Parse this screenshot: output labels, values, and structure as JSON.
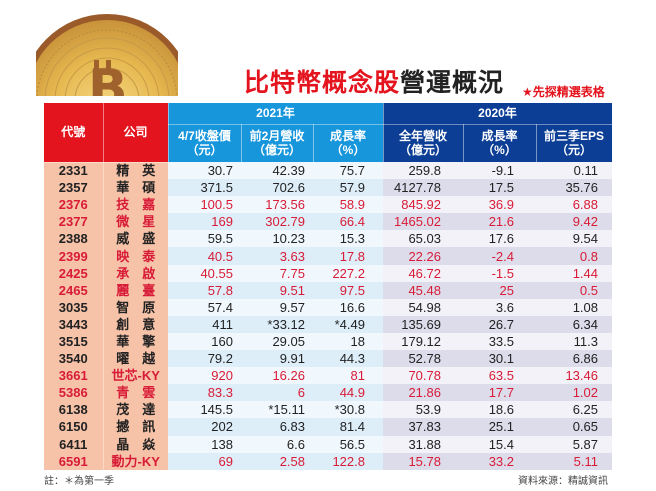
{
  "header": {
    "title_highlight": "比特幣概念股",
    "title_rest": "營運概況",
    "tagline": "★先探精選表格"
  },
  "colors": {
    "red": "#e4141e",
    "cyan": "#1896dc",
    "navy": "#0c3e96",
    "salmon": "#f6c3a9",
    "highlight_text": "#d81b36"
  },
  "table": {
    "col_code": "代號",
    "col_company": "公司",
    "group_2021": "2021年",
    "group_2020": "2020年",
    "columns_2021": [
      {
        "line1": "4/7收盤價",
        "line2": "（元）"
      },
      {
        "line1": "前2月營收",
        "line2": "（億元）"
      },
      {
        "line1": "成長率",
        "line2": "（%）"
      }
    ],
    "columns_2020": [
      {
        "line1": "全年營收",
        "line2": "（億元）"
      },
      {
        "line1": "成長率",
        "line2": "（%）"
      },
      {
        "line1": "前三季EPS",
        "line2": "（元）"
      }
    ],
    "rows": [
      {
        "code": "2331",
        "name": "精　英",
        "highlight": false,
        "v": [
          "30.7",
          "42.39",
          "75.7",
          "259.8",
          "-9.1",
          "0.11"
        ]
      },
      {
        "code": "2357",
        "name": "華　碩",
        "highlight": false,
        "v": [
          "371.5",
          "702.6",
          "57.9",
          "4127.78",
          "17.5",
          "35.76"
        ]
      },
      {
        "code": "2376",
        "name": "技　嘉",
        "highlight": true,
        "v": [
          "100.5",
          "173.56",
          "58.9",
          "845.92",
          "36.9",
          "6.88"
        ]
      },
      {
        "code": "2377",
        "name": "微　星",
        "highlight": true,
        "v": [
          "169",
          "302.79",
          "66.4",
          "1465.02",
          "21.6",
          "9.42"
        ]
      },
      {
        "code": "2388",
        "name": "威　盛",
        "highlight": false,
        "v": [
          "59.5",
          "10.23",
          "15.3",
          "65.03",
          "17.6",
          "9.54"
        ]
      },
      {
        "code": "2399",
        "name": "映　泰",
        "highlight": true,
        "v": [
          "40.5",
          "3.63",
          "17.8",
          "22.26",
          "-2.4",
          "0.8"
        ]
      },
      {
        "code": "2425",
        "name": "承　啟",
        "highlight": true,
        "v": [
          "40.55",
          "7.75",
          "227.2",
          "46.72",
          "-1.5",
          "1.44"
        ]
      },
      {
        "code": "2465",
        "name": "麗　臺",
        "highlight": true,
        "v": [
          "57.8",
          "9.51",
          "97.5",
          "45.48",
          "25",
          "0.5"
        ]
      },
      {
        "code": "3035",
        "name": "智　原",
        "highlight": false,
        "v": [
          "57.4",
          "9.57",
          "16.6",
          "54.98",
          "3.6",
          "1.08"
        ]
      },
      {
        "code": "3443",
        "name": "創　意",
        "highlight": false,
        "v": [
          "411",
          "*33.12",
          "*4.49",
          "135.69",
          "26.7",
          "6.34"
        ]
      },
      {
        "code": "3515",
        "name": "華　擎",
        "highlight": false,
        "v": [
          "160",
          "29.05",
          "18",
          "179.12",
          "33.5",
          "11.3"
        ]
      },
      {
        "code": "3540",
        "name": "曜　越",
        "highlight": false,
        "v": [
          "79.2",
          "9.91",
          "44.3",
          "52.78",
          "30.1",
          "6.86"
        ]
      },
      {
        "code": "3661",
        "name": "世芯-KY",
        "highlight": true,
        "v": [
          "920",
          "16.26",
          "81",
          "70.78",
          "63.5",
          "13.46"
        ]
      },
      {
        "code": "5386",
        "name": "青　雲",
        "highlight": true,
        "v": [
          "83.3",
          "6",
          "44.9",
          "21.86",
          "17.7",
          "1.02"
        ]
      },
      {
        "code": "6138",
        "name": "茂　達",
        "highlight": false,
        "v": [
          "145.5",
          "*15.11",
          "*30.8",
          "53.9",
          "18.6",
          "6.25"
        ]
      },
      {
        "code": "6150",
        "name": "撼　訊",
        "highlight": false,
        "v": [
          "202",
          "6.83",
          "81.4",
          "37.83",
          "25.1",
          "0.65"
        ]
      },
      {
        "code": "6411",
        "name": "晶　焱",
        "highlight": false,
        "v": [
          "138",
          "6.6",
          "56.5",
          "31.88",
          "15.4",
          "5.87"
        ]
      },
      {
        "code": "6591",
        "name": "動力-KY",
        "highlight": true,
        "v": [
          "69",
          "2.58",
          "122.8",
          "15.78",
          "33.2",
          "5.11"
        ]
      }
    ]
  },
  "footer": {
    "note": "註：＊為第一季",
    "source": "資料來源：精誠資訊"
  },
  "icons": {
    "coin": "bitcoin-coin-icon"
  }
}
